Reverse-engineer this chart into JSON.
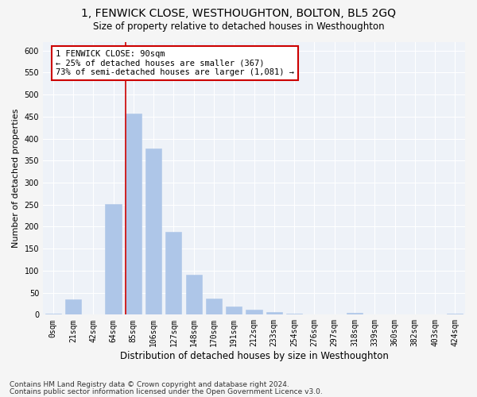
{
  "title": "1, FENWICK CLOSE, WESTHOUGHTON, BOLTON, BL5 2GQ",
  "subtitle": "Size of property relative to detached houses in Westhoughton",
  "xlabel": "Distribution of detached houses by size in Westhoughton",
  "ylabel": "Number of detached properties",
  "bar_color": "#aec6e8",
  "bar_edge_color": "#aec6e8",
  "categories": [
    "0sqm",
    "21sqm",
    "42sqm",
    "64sqm",
    "85sqm",
    "106sqm",
    "127sqm",
    "148sqm",
    "170sqm",
    "191sqm",
    "212sqm",
    "233sqm",
    "254sqm",
    "276sqm",
    "297sqm",
    "318sqm",
    "339sqm",
    "360sqm",
    "382sqm",
    "403sqm",
    "424sqm"
  ],
  "values": [
    3,
    35,
    0,
    252,
    457,
    378,
    188,
    90,
    37,
    19,
    12,
    6,
    3,
    1,
    0,
    4,
    0,
    0,
    0,
    0,
    3
  ],
  "vline_color": "#cc0000",
  "annotation_text": "1 FENWICK CLOSE: 90sqm\n← 25% of detached houses are smaller (367)\n73% of semi-detached houses are larger (1,081) →",
  "annotation_box_color": "#ffffff",
  "annotation_box_edge_color": "#cc0000",
  "ylim": [
    0,
    620
  ],
  "yticks": [
    0,
    50,
    100,
    150,
    200,
    250,
    300,
    350,
    400,
    450,
    500,
    550,
    600
  ],
  "footer_line1": "Contains HM Land Registry data © Crown copyright and database right 2024.",
  "footer_line2": "Contains public sector information licensed under the Open Government Licence v3.0.",
  "background_color": "#eef2f8",
  "grid_color": "#ffffff",
  "title_fontsize": 10,
  "subtitle_fontsize": 8.5,
  "xlabel_fontsize": 8.5,
  "ylabel_fontsize": 8,
  "tick_fontsize": 7,
  "annotation_fontsize": 7.5,
  "footer_fontsize": 6.5
}
